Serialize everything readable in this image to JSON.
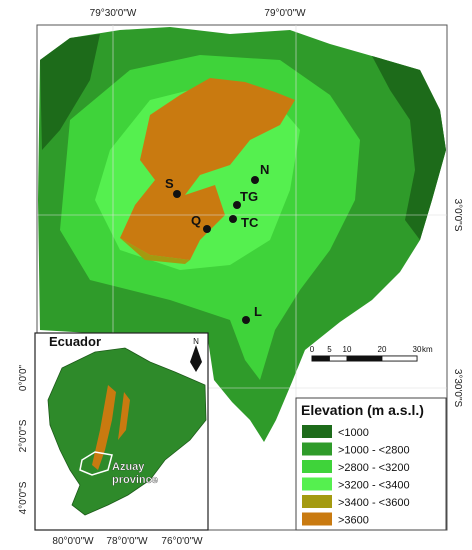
{
  "map": {
    "top_labels": [
      "79°30'0\"W",
      "79°0'0\"W"
    ],
    "right_labels": [
      "3°0'0\"S",
      "3°30'0\"S"
    ],
    "sites": [
      "S",
      "N",
      "TG",
      "Q",
      "TC",
      "L"
    ],
    "scale_bar": {
      "ticks": [
        0,
        5,
        10,
        20,
        30
      ],
      "unit": "km"
    },
    "legend": {
      "title": "Elevation (m a.s.l.)",
      "items": [
        {
          "label": "<1000",
          "color": "#1d6b1a"
        },
        {
          "label": ">1000 - <2800",
          "color": "#2f9b2a"
        },
        {
          "label": ">2800 - <3200",
          "color": "#3fd33a"
        },
        {
          "label": ">3200 - <3400",
          "color": "#55f04f"
        },
        {
          "label": ">3400 - <3600",
          "color": "#a49a10"
        },
        {
          "label": ">3600",
          "color": "#c97a10"
        }
      ]
    }
  },
  "inset": {
    "title": "Ecuador",
    "north": "N",
    "left_labels": [
      "0°0'0\"",
      "2°0'0\"S",
      "4°0'0\"S"
    ],
    "bottom_labels": [
      "80°0'0\"W",
      "78°0'0\"W",
      "76°0'0\"W"
    ],
    "region_label": [
      "Azuay",
      "province"
    ]
  }
}
